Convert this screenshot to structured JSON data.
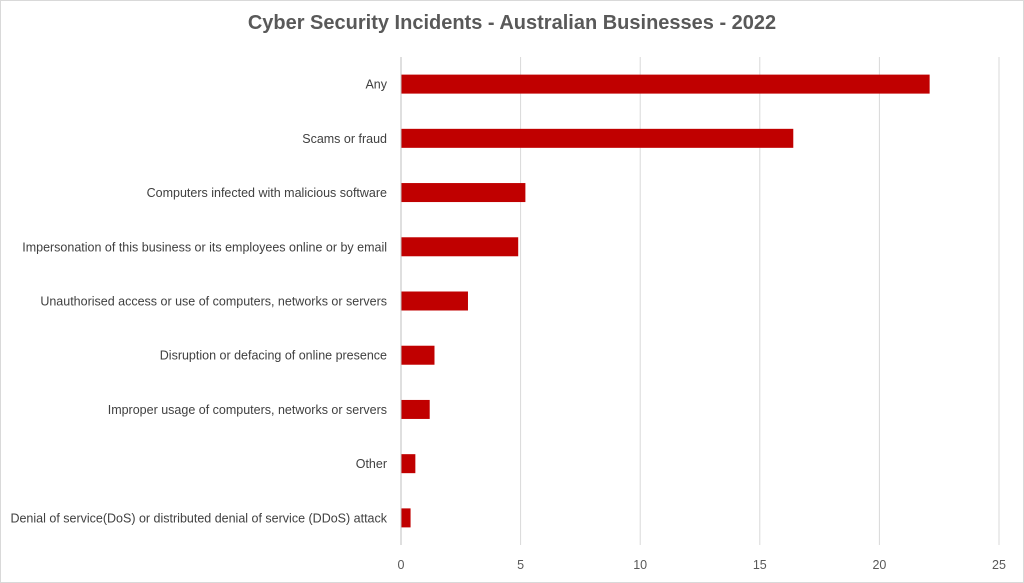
{
  "chart_data": {
    "type": "bar",
    "orientation": "horizontal",
    "title": "Cyber Security Incidents - Australian Businesses - 2022",
    "xlabel": "",
    "ylabel": "",
    "categories": [
      "Any",
      "Scams or fraud",
      "Computers infected with malicious software",
      "Impersonation of this business or its employees online or by email",
      "Unauthorised access or use of computers, networks or servers",
      "Disruption or defacing of online presence",
      "Improper usage of computers, networks or servers",
      "Other",
      "Denial of service(DoS) or distributed denial of service (DDoS) attack"
    ],
    "values": [
      22.1,
      16.4,
      5.2,
      4.9,
      2.8,
      1.4,
      1.2,
      0.6,
      0.4
    ],
    "xlim": [
      0,
      25
    ],
    "xticks": [
      0,
      5,
      10,
      15,
      20,
      25
    ],
    "grid": "vertical",
    "legend": "none",
    "bar_color": "#C00000",
    "grid_color": "#D9D9D9",
    "axis_color": "#BFBFBF"
  }
}
